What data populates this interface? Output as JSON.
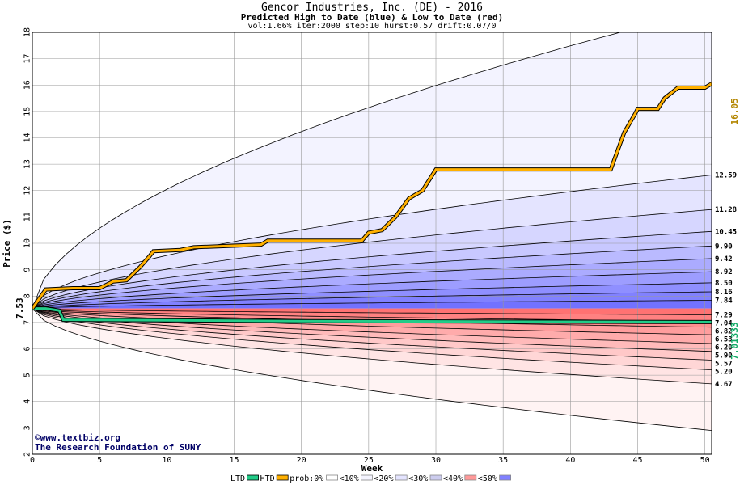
{
  "titles": {
    "line1": "Gencor Industries, Inc. (DE) - 2016",
    "line2": "Predicted High to Date (blue) &  Low to Date (red)",
    "line3": "vol:1.66% iter:2000 step:10 hurst:0.57 drift:0.07/0"
  },
  "chart_data": {
    "type": "area",
    "xlabel": "Week",
    "ylabel": "Price ($)",
    "xlim": [
      0,
      50.5
    ],
    "ylim": [
      2,
      18
    ],
    "x_ticks": [
      0,
      5,
      10,
      15,
      20,
      25,
      30,
      35,
      40,
      45,
      50
    ],
    "y_ticks": [
      2,
      3,
      4,
      5,
      6,
      7,
      8,
      9,
      10,
      11,
      12,
      13,
      14,
      15,
      16,
      17,
      18
    ],
    "grid": true,
    "start_price": 7.53,
    "start_label": "7.53",
    "high_label": "16.05",
    "low_label": "7.01333",
    "high_color": "#ffb000",
    "low_color": "#22cc88",
    "upper_color": "#6666ff",
    "lower_color": "#ff6666",
    "high_to_date": [
      [
        0,
        7.53
      ],
      [
        1,
        8.25
      ],
      [
        3,
        8.3
      ],
      [
        5,
        8.3
      ],
      [
        6,
        8.55
      ],
      [
        7,
        8.6
      ],
      [
        8,
        9.1
      ],
      [
        8.7,
        9.5
      ],
      [
        9,
        9.7
      ],
      [
        11,
        9.75
      ],
      [
        12,
        9.85
      ],
      [
        17,
        9.95
      ],
      [
        17.5,
        10.1
      ],
      [
        24.5,
        10.1
      ],
      [
        25,
        10.4
      ],
      [
        26,
        10.5
      ],
      [
        27,
        11
      ],
      [
        28,
        11.7
      ],
      [
        29,
        12
      ],
      [
        30,
        12.8
      ],
      [
        43,
        12.8
      ],
      [
        44,
        14.2
      ],
      [
        44.8,
        14.9
      ],
      [
        45,
        15.1
      ],
      [
        46.5,
        15.1
      ],
      [
        47,
        15.5
      ],
      [
        48,
        15.9
      ],
      [
        50,
        15.9
      ],
      [
        50.5,
        16.05
      ]
    ],
    "low_to_date": [
      [
        0,
        7.53
      ],
      [
        1,
        7.53
      ],
      [
        2,
        7.45
      ],
      [
        2.3,
        7.1
      ],
      [
        20,
        7.05
      ],
      [
        50.5,
        7.01333
      ]
    ],
    "upper_bands": [
      {
        "label": "12.59",
        "end": 12.59
      },
      {
        "label": "11.28",
        "end": 11.28
      },
      {
        "label": "10.45",
        "end": 10.45
      },
      {
        "label": "9.90",
        "end": 9.9
      },
      {
        "label": "9.42",
        "end": 9.42
      },
      {
        "label": "8.92",
        "end": 8.92
      },
      {
        "label": "8.50",
        "end": 8.5
      },
      {
        "label": "8.16",
        "end": 8.16
      },
      {
        "label": "7.84",
        "end": 7.84
      }
    ],
    "lower_bands": [
      {
        "label": "7.29",
        "end": 7.29
      },
      {
        "label": "7.04",
        "end": 7.04
      },
      {
        "label": "6.82",
        "end": 6.82
      },
      {
        "label": "6.53",
        "end": 6.53
      },
      {
        "label": "6.20",
        "end": 6.2
      },
      {
        "label": "5.90",
        "end": 5.9
      },
      {
        "label": "5.57",
        "end": 5.57
      },
      {
        "label": "5.20",
        "end": 5.2
      },
      {
        "label": "4.67",
        "end": 4.67
      }
    ],
    "upper_envelope_end": 18.9,
    "lower_envelope_end": 2.9,
    "watermark": [
      "www.textbiz.org",
      "The Research Foundation of SUNY"
    ],
    "legend": [
      "LTD",
      "HTD",
      "prob:0%",
      "<10%",
      "<20%",
      "<30%",
      "<40%",
      "<50%"
    ],
    "legend_colors": [
      "#22cc88",
      "#ffb000",
      "#ffffff",
      "#f4f4ff",
      "#e4e4ff",
      "#ccccee",
      "#ff9999",
      "#8080ff"
    ]
  }
}
